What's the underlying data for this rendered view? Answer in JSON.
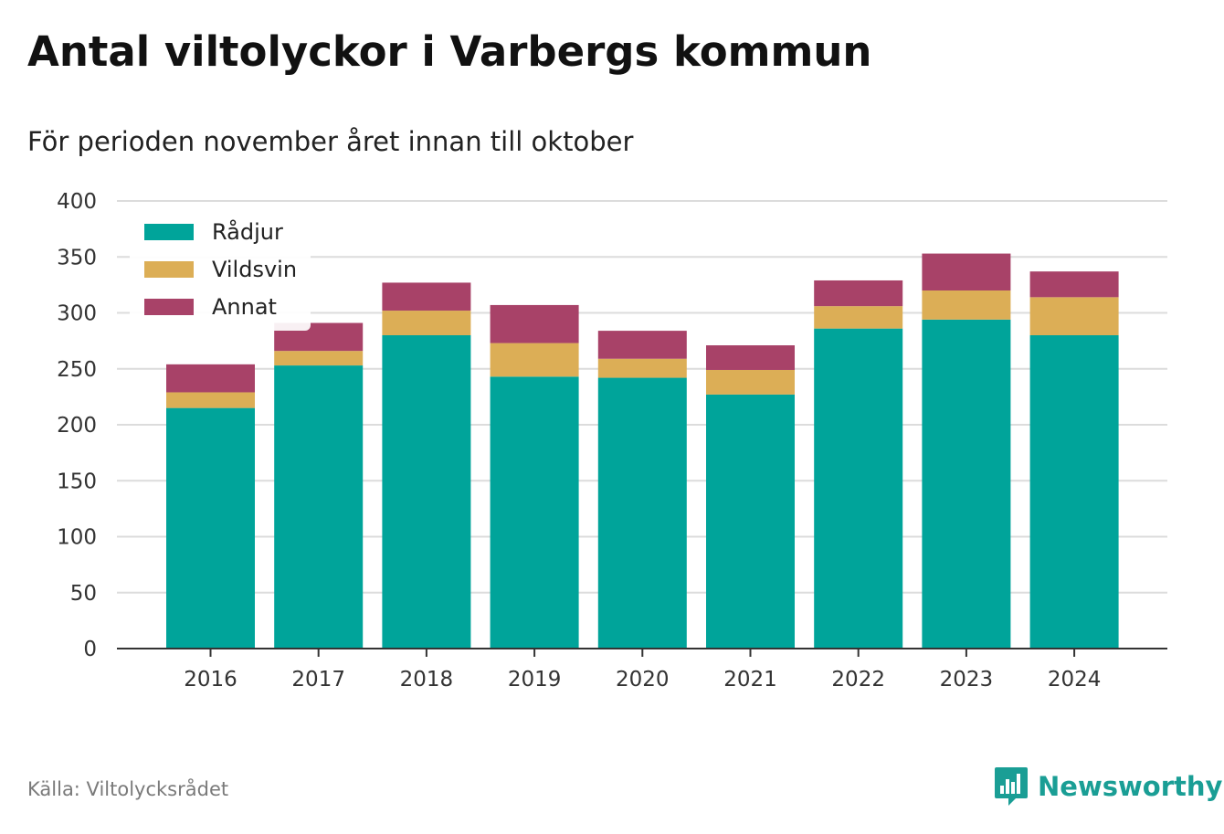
{
  "header": {
    "title": "Antal viltolyckor i Varbergs kommun",
    "subtitle": "För perioden november året innan till oktober"
  },
  "footer": {
    "source": "Källa: Viltolycksrådet",
    "brand": "Newsworthy",
    "brand_icon": "newsworthy-logo-icon"
  },
  "colors": {
    "radjur": "#00a49a",
    "vildsvin": "#dcae56",
    "annat": "#a84268",
    "grid": "#dcdcdc",
    "axis": "#333333",
    "brand": "#1a9e95"
  },
  "chart_data": {
    "type": "bar",
    "stacked": true,
    "categories": [
      "2016",
      "2017",
      "2018",
      "2019",
      "2020",
      "2021",
      "2022",
      "2023",
      "2024"
    ],
    "series": [
      {
        "name": "Rådjur",
        "color": "#00a49a",
        "values": [
          215,
          253,
          280,
          243,
          242,
          227,
          286,
          294,
          280
        ]
      },
      {
        "name": "Vildsvin",
        "color": "#dcae56",
        "values": [
          14,
          13,
          22,
          30,
          17,
          22,
          20,
          26,
          34
        ]
      },
      {
        "name": "Annat",
        "color": "#a84268",
        "values": [
          25,
          25,
          25,
          34,
          25,
          22,
          23,
          33,
          23
        ]
      }
    ],
    "ylim": [
      0,
      400
    ],
    "yticks": [
      0,
      50,
      100,
      150,
      200,
      250,
      300,
      350,
      400
    ],
    "grid": true,
    "legend": "top-left"
  }
}
